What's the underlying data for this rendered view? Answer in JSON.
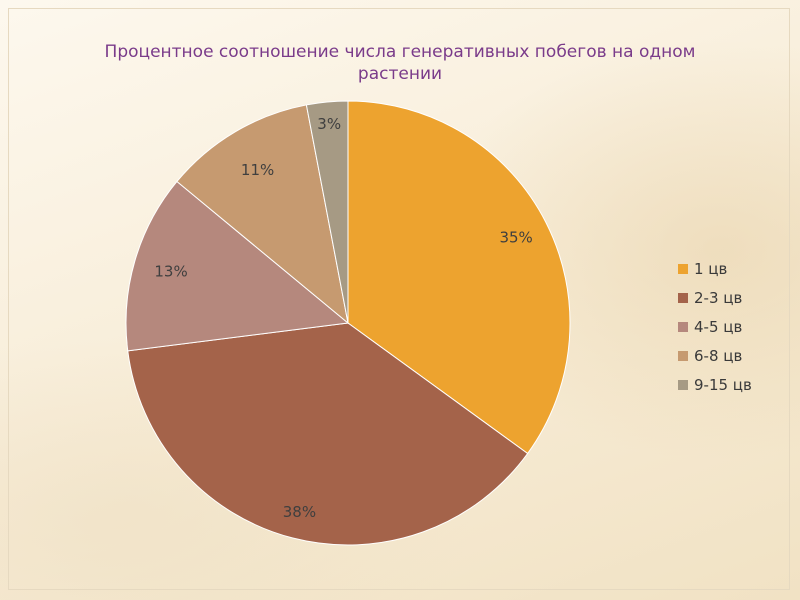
{
  "chart_data": {
    "type": "pie",
    "title": "Процентное соотношение числа генеративных побегов на одном растении",
    "title_lines": [
      "Процентное соотношение числа генеративных побегов на одном",
      "растении"
    ],
    "categories": [
      "1 цв",
      "2-3 цв",
      "4-5 цв",
      "6-8 цв",
      "9-15 цв"
    ],
    "values": [
      35,
      38,
      13,
      11,
      3
    ],
    "value_labels": [
      "35%",
      "38%",
      "13%",
      "11%",
      "3%"
    ],
    "colors": [
      "#eda32f",
      "#a4634a",
      "#b5887d",
      "#c69a70",
      "#a69a84"
    ],
    "legend_position": "right"
  }
}
